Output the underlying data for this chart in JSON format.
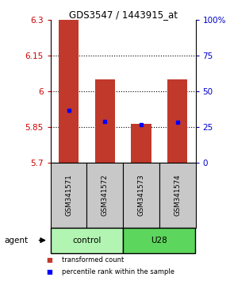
{
  "title": "GDS3547 / 1443915_at",
  "samples": [
    "GSM341571",
    "GSM341572",
    "GSM341573",
    "GSM341574"
  ],
  "bar_bottom": 5.7,
  "bar_tops": [
    6.3,
    6.05,
    5.865,
    6.05
  ],
  "percentile_values": [
    5.92,
    5.875,
    5.862,
    5.872
  ],
  "ylim_left": [
    5.7,
    6.3
  ],
  "ylim_right": [
    0,
    100
  ],
  "yticks_left": [
    5.7,
    5.85,
    6.0,
    6.15,
    6.3
  ],
  "yticks_right": [
    0,
    25,
    50,
    75,
    100
  ],
  "ytick_labels_left": [
    "5.7",
    "5.85",
    "6",
    "6.15",
    "6.3"
  ],
  "ytick_labels_right": [
    "0",
    "25",
    "50",
    "75",
    "100%"
  ],
  "bar_color": "#c0392b",
  "percentile_color": "#0000ff",
  "sample_box_color": "#c8c8c8",
  "control_color": "#b2f5b2",
  "u28_color": "#5cd65c",
  "legend_items": [
    {
      "color": "#c0392b",
      "label": "transformed count"
    },
    {
      "color": "#0000ff",
      "label": "percentile rank within the sample"
    }
  ]
}
